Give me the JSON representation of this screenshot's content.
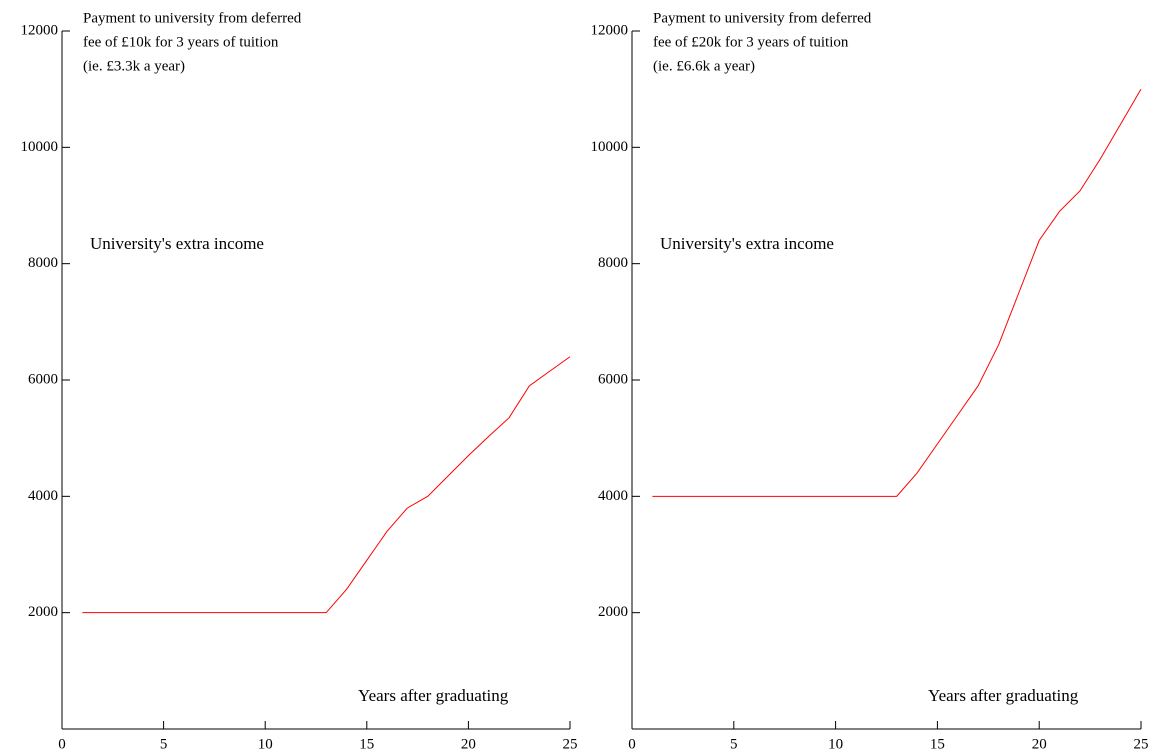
{
  "chart_data": [
    {
      "type": "line",
      "title_lines": [
        "Payment to university from deferred",
        "fee of £10k for 3 years of tuition",
        "(ie. £3.3k a year)"
      ],
      "y_annotation": "University's extra income",
      "x_annotation": "Years after graduating",
      "x": [
        1,
        2,
        3,
        4,
        5,
        6,
        7,
        8,
        9,
        10,
        11,
        12,
        13,
        14,
        15,
        16,
        17,
        18,
        19,
        20,
        21,
        22,
        23,
        24,
        25
      ],
      "series": [
        {
          "color": "#ff0000",
          "values": [
            2000,
            2000,
            2000,
            2000,
            2000,
            2000,
            2000,
            2000,
            2000,
            2000,
            2000,
            2000,
            2000,
            2400,
            2900,
            3400,
            3800,
            4000,
            4350,
            4700,
            5030,
            5350,
            5900,
            6150,
            6400
          ]
        }
      ],
      "xlim": [
        0,
        25
      ],
      "xticks": [
        0,
        5,
        10,
        15,
        20,
        25
      ],
      "ylim": [
        0,
        12000
      ],
      "yticks": [
        2000,
        4000,
        6000,
        8000,
        10000,
        12000
      ]
    },
    {
      "type": "line",
      "title_lines": [
        "Payment to university from deferred",
        "fee of £20k for 3 years of tuition",
        "(ie. £6.6k a year)"
      ],
      "y_annotation": "University's extra income",
      "x_annotation": "Years after graduating",
      "x": [
        1,
        2,
        3,
        4,
        5,
        6,
        7,
        8,
        9,
        10,
        11,
        12,
        13,
        14,
        15,
        16,
        17,
        18,
        19,
        20,
        21,
        22,
        23,
        24,
        25
      ],
      "series": [
        {
          "color": "#ff0000",
          "values": [
            4000,
            4000,
            4000,
            4000,
            4000,
            4000,
            4000,
            4000,
            4000,
            4000,
            4000,
            4000,
            4000,
            4400,
            4900,
            5400,
            5900,
            6600,
            7500,
            8400,
            8900,
            9250,
            9800,
            10400,
            11000
          ]
        }
      ],
      "xlim": [
        0,
        25
      ],
      "xticks": [
        0,
        5,
        10,
        15,
        20,
        25
      ],
      "ylim": [
        0,
        12000
      ],
      "yticks": [
        2000,
        4000,
        6000,
        8000,
        10000,
        12000
      ]
    }
  ]
}
